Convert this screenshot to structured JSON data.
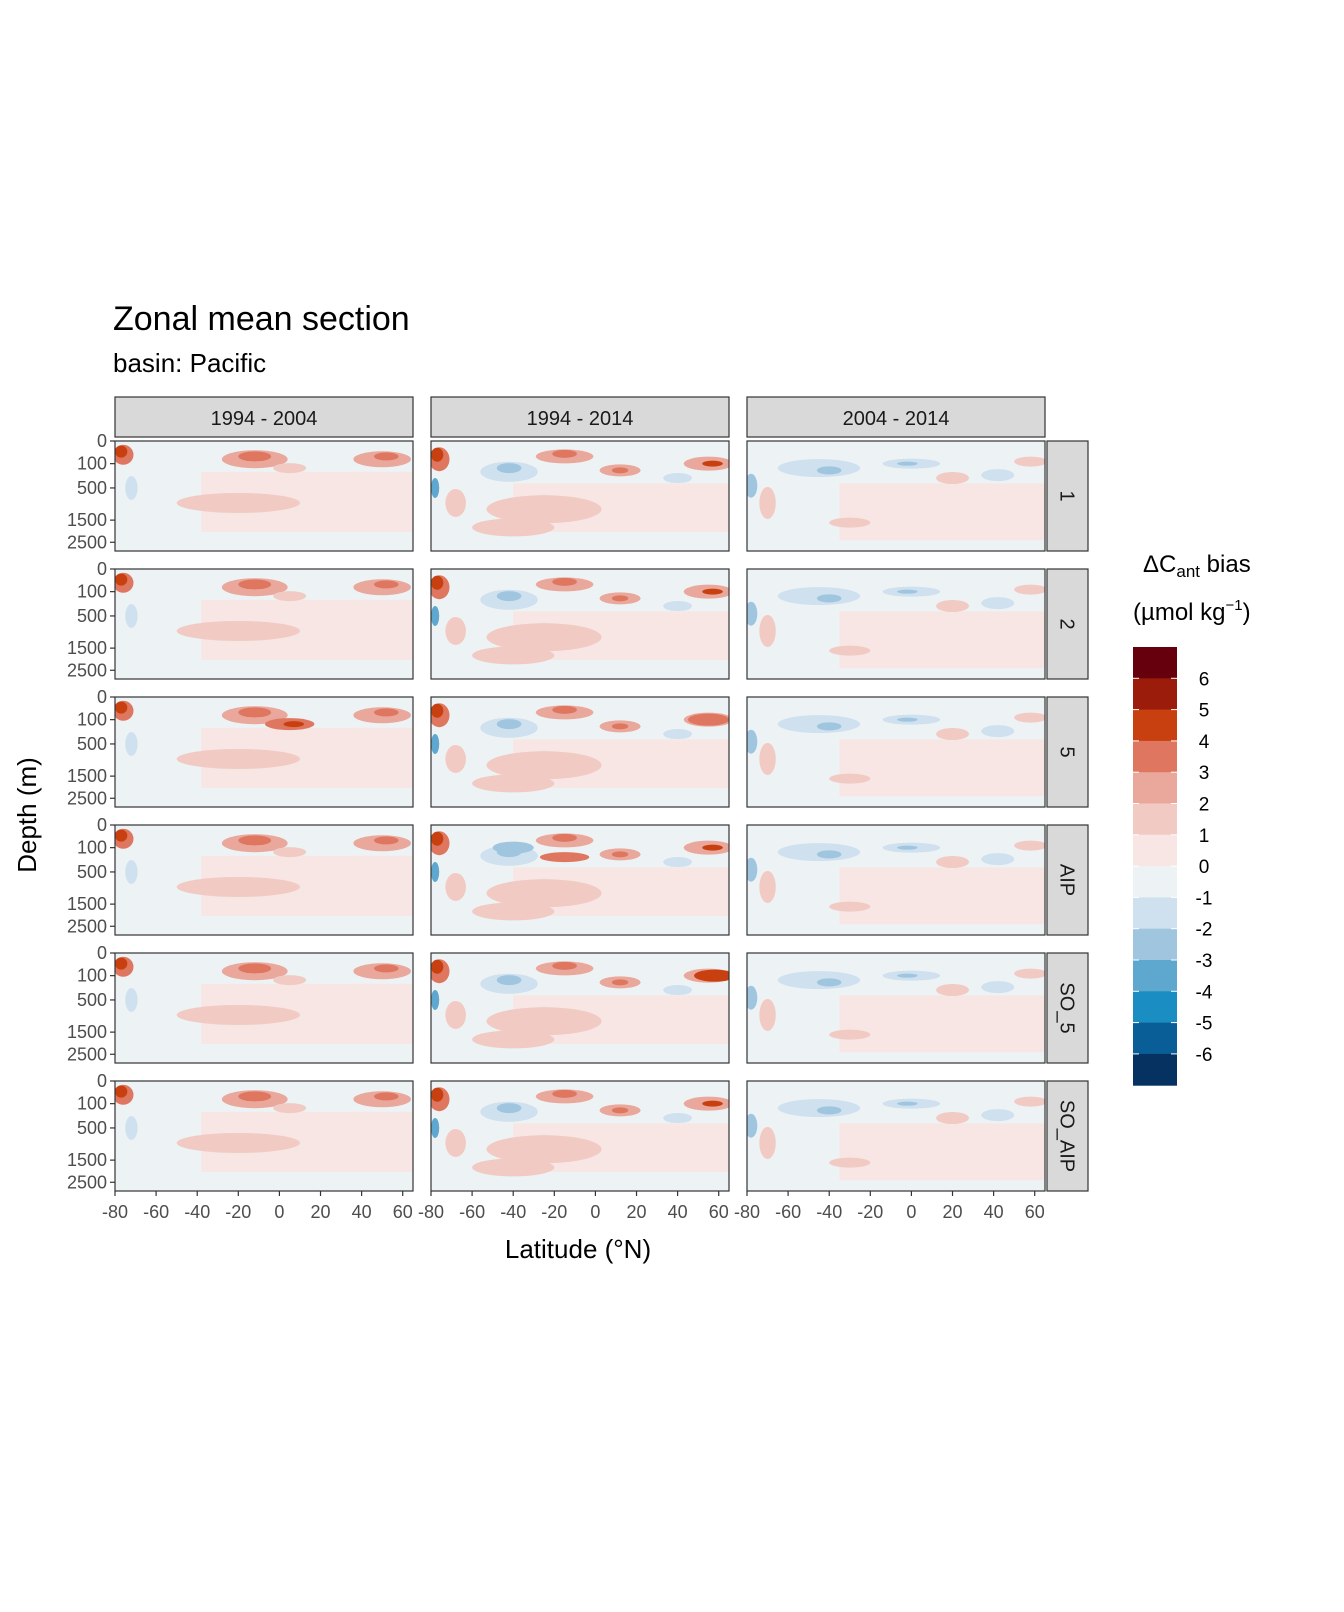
{
  "chart_data": {
    "type": "heatmap",
    "title": "Zonal mean section",
    "subtitle": "basin: Pacific",
    "xlabel": "Latitude (°N)",
    "ylabel": "Depth (m)",
    "xlim": [
      -80,
      65
    ],
    "x_ticks": [
      -80,
      -60,
      -40,
      -20,
      0,
      20,
      40,
      60
    ],
    "y_ticks": [
      0,
      100,
      500,
      1500,
      2500
    ],
    "columns": [
      "1994 - 2004",
      "1994 - 2014",
      "2004 - 2014"
    ],
    "rows": [
      "1",
      "2",
      "5",
      "AIP",
      "SO_5",
      "SO_AIP"
    ],
    "legend": {
      "title_main": "ΔC",
      "title_sub": "ant",
      "title_rest": " bias",
      "unit_main": "(µmol kg",
      "unit_sup": "−1",
      "unit_close": ")",
      "labels": [
        "6",
        "5",
        "4",
        "3",
        "2",
        "1",
        "0",
        "-1",
        "-2",
        "-3",
        "-4",
        "-5",
        "-6"
      ],
      "colors": [
        "#67000d",
        "#9b1c0a",
        "#c8400f",
        "#df7760",
        "#e9a89b",
        "#f2cac4",
        "#f7e6e4",
        "#edf2f5",
        "#cfe0ee",
        "#9fc5df",
        "#5ea8d0",
        "#1a8ec2",
        "#0a5e97",
        "#053261"
      ]
    },
    "panels_note": "Each panel shows a smooth zonal-mean depth section; strongest positive biases near -80°N at the surface, bands near -20..0 and 40..60 in the upper 100-500 m."
  }
}
